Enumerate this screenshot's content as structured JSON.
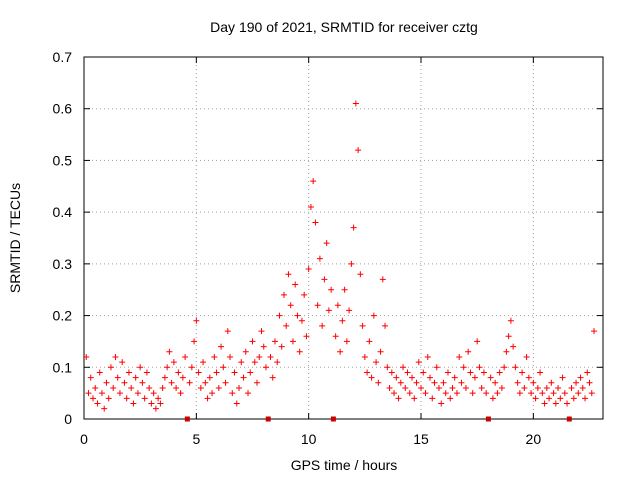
{
  "chart_data": {
    "type": "scatter",
    "title": "Day 190 of 2021, SRMTID for receiver cztg",
    "xlabel": "GPS time / hours",
    "ylabel": "SRMTID / TECUs",
    "xlim": [
      0,
      23.1
    ],
    "ylim": [
      0,
      0.7
    ],
    "xticks": [
      0,
      5,
      10,
      15,
      20
    ],
    "yticks": [
      0,
      0.1,
      0.2,
      0.3,
      0.4,
      0.5,
      0.6,
      0.7
    ],
    "xtick_labels": [
      "0",
      "5",
      "10",
      "15",
      "20"
    ],
    "ytick_labels": [
      "0",
      "0.1",
      "0.2",
      "0.3",
      "0.4",
      "0.5",
      "0.6",
      "0.7"
    ],
    "grid": true,
    "marker": "+",
    "series_color": "#ff0000",
    "gap_markers_x": [
      4.6,
      8.2,
      11.1,
      18.0,
      21.6
    ],
    "series": [
      {
        "name": "SRMTID",
        "points": [
          [
            0.1,
            0.12
          ],
          [
            0.2,
            0.05
          ],
          [
            0.3,
            0.08
          ],
          [
            0.4,
            0.04
          ],
          [
            0.5,
            0.06
          ],
          [
            0.6,
            0.03
          ],
          [
            0.7,
            0.09
          ],
          [
            0.8,
            0.05
          ],
          [
            0.9,
            0.02
          ],
          [
            1.0,
            0.07
          ],
          [
            1.1,
            0.04
          ],
          [
            1.2,
            0.1
          ],
          [
            1.3,
            0.06
          ],
          [
            1.4,
            0.12
          ],
          [
            1.5,
            0.08
          ],
          [
            1.6,
            0.05
          ],
          [
            1.7,
            0.11
          ],
          [
            1.8,
            0.07
          ],
          [
            1.9,
            0.04
          ],
          [
            2.0,
            0.09
          ],
          [
            2.1,
            0.06
          ],
          [
            2.2,
            0.03
          ],
          [
            2.3,
            0.08
          ],
          [
            2.4,
            0.05
          ],
          [
            2.5,
            0.1
          ],
          [
            2.6,
            0.07
          ],
          [
            2.7,
            0.04
          ],
          [
            2.8,
            0.09
          ],
          [
            2.9,
            0.06
          ],
          [
            3.0,
            0.03
          ],
          [
            3.1,
            0.05
          ],
          [
            3.2,
            0.02
          ],
          [
            3.3,
            0.04
          ],
          [
            3.4,
            0.03
          ],
          [
            3.5,
            0.06
          ],
          [
            3.6,
            0.08
          ],
          [
            3.7,
            0.1
          ],
          [
            3.8,
            0.13
          ],
          [
            3.9,
            0.07
          ],
          [
            4.0,
            0.11
          ],
          [
            4.1,
            0.06
          ],
          [
            4.2,
            0.09
          ],
          [
            4.3,
            0.05
          ],
          [
            4.4,
            0.08
          ],
          [
            4.5,
            0.12
          ],
          [
            4.7,
            0.07
          ],
          [
            4.8,
            0.1
          ],
          [
            4.9,
            0.15
          ],
          [
            5.0,
            0.19
          ],
          [
            5.1,
            0.09
          ],
          [
            5.2,
            0.06
          ],
          [
            5.3,
            0.11
          ],
          [
            5.4,
            0.07
          ],
          [
            5.5,
            0.04
          ],
          [
            5.6,
            0.08
          ],
          [
            5.7,
            0.05
          ],
          [
            5.8,
            0.12
          ],
          [
            5.9,
            0.09
          ],
          [
            6.0,
            0.06
          ],
          [
            6.1,
            0.14
          ],
          [
            6.2,
            0.1
          ],
          [
            6.3,
            0.07
          ],
          [
            6.4,
            0.17
          ],
          [
            6.5,
            0.12
          ],
          [
            6.6,
            0.05
          ],
          [
            6.7,
            0.09
          ],
          [
            6.8,
            0.03
          ],
          [
            6.9,
            0.06
          ],
          [
            7.0,
            0.11
          ],
          [
            7.1,
            0.08
          ],
          [
            7.2,
            0.13
          ],
          [
            7.3,
            0.05
          ],
          [
            7.4,
            0.09
          ],
          [
            7.5,
            0.15
          ],
          [
            7.6,
            0.11
          ],
          [
            7.7,
            0.07
          ],
          [
            7.8,
            0.12
          ],
          [
            7.9,
            0.17
          ],
          [
            8.0,
            0.14
          ],
          [
            8.1,
            0.1
          ],
          [
            8.3,
            0.12
          ],
          [
            8.4,
            0.08
          ],
          [
            8.5,
            0.15
          ],
          [
            8.6,
            0.11
          ],
          [
            8.7,
            0.2
          ],
          [
            8.8,
            0.14
          ],
          [
            8.9,
            0.24
          ],
          [
            9.0,
            0.18
          ],
          [
            9.1,
            0.28
          ],
          [
            9.2,
            0.22
          ],
          [
            9.3,
            0.15
          ],
          [
            9.4,
            0.26
          ],
          [
            9.5,
            0.2
          ],
          [
            9.6,
            0.13
          ],
          [
            9.7,
            0.19
          ],
          [
            9.8,
            0.24
          ],
          [
            9.9,
            0.16
          ],
          [
            10.0,
            0.29
          ],
          [
            10.1,
            0.41
          ],
          [
            10.2,
            0.46
          ],
          [
            10.3,
            0.38
          ],
          [
            10.4,
            0.22
          ],
          [
            10.5,
            0.31
          ],
          [
            10.6,
            0.18
          ],
          [
            10.7,
            0.27
          ],
          [
            10.8,
            0.34
          ],
          [
            10.9,
            0.21
          ],
          [
            11.0,
            0.25
          ],
          [
            11.2,
            0.16
          ],
          [
            11.3,
            0.22
          ],
          [
            11.4,
            0.13
          ],
          [
            11.5,
            0.19
          ],
          [
            11.6,
            0.25
          ],
          [
            11.7,
            0.15
          ],
          [
            11.8,
            0.21
          ],
          [
            11.9,
            0.3
          ],
          [
            12.0,
            0.37
          ],
          [
            12.1,
            0.61
          ],
          [
            12.2,
            0.52
          ],
          [
            12.3,
            0.28
          ],
          [
            12.4,
            0.18
          ],
          [
            12.5,
            0.12
          ],
          [
            12.6,
            0.09
          ],
          [
            12.7,
            0.15
          ],
          [
            12.8,
            0.08
          ],
          [
            12.9,
            0.2
          ],
          [
            13.0,
            0.11
          ],
          [
            13.1,
            0.07
          ],
          [
            13.2,
            0.13
          ],
          [
            13.3,
            0.27
          ],
          [
            13.4,
            0.18
          ],
          [
            13.5,
            0.1
          ],
          [
            13.6,
            0.06
          ],
          [
            13.7,
            0.09
          ],
          [
            13.8,
            0.05
          ],
          [
            13.9,
            0.08
          ],
          [
            14.0,
            0.04
          ],
          [
            14.1,
            0.07
          ],
          [
            14.2,
            0.1
          ],
          [
            14.3,
            0.06
          ],
          [
            14.4,
            0.09
          ],
          [
            14.5,
            0.05
          ],
          [
            14.6,
            0.08
          ],
          [
            14.7,
            0.04
          ],
          [
            14.8,
            0.07
          ],
          [
            14.9,
            0.11
          ],
          [
            15.0,
            0.06
          ],
          [
            15.1,
            0.09
          ],
          [
            15.2,
            0.05
          ],
          [
            15.3,
            0.12
          ],
          [
            15.4,
            0.08
          ],
          [
            15.5,
            0.04
          ],
          [
            15.6,
            0.07
          ],
          [
            15.7,
            0.1
          ],
          [
            15.8,
            0.06
          ],
          [
            15.9,
            0.03
          ],
          [
            16.0,
            0.07
          ],
          [
            16.1,
            0.05
          ],
          [
            16.2,
            0.09
          ],
          [
            16.3,
            0.04
          ],
          [
            16.4,
            0.06
          ],
          [
            16.5,
            0.08
          ],
          [
            16.6,
            0.05
          ],
          [
            16.7,
            0.12
          ],
          [
            16.8,
            0.07
          ],
          [
            16.9,
            0.1
          ],
          [
            17.0,
            0.06
          ],
          [
            17.1,
            0.13
          ],
          [
            17.2,
            0.09
          ],
          [
            17.3,
            0.05
          ],
          [
            17.4,
            0.08
          ],
          [
            17.5,
            0.15
          ],
          [
            17.6,
            0.1
          ],
          [
            17.7,
            0.06
          ],
          [
            17.8,
            0.09
          ],
          [
            17.9,
            0.05
          ],
          [
            18.1,
            0.08
          ],
          [
            18.2,
            0.04
          ],
          [
            18.3,
            0.07
          ],
          [
            18.4,
            0.05
          ],
          [
            18.5,
            0.09
          ],
          [
            18.6,
            0.06
          ],
          [
            18.7,
            0.1
          ],
          [
            18.8,
            0.13
          ],
          [
            18.9,
            0.16
          ],
          [
            19.0,
            0.19
          ],
          [
            19.1,
            0.14
          ],
          [
            19.2,
            0.1
          ],
          [
            19.3,
            0.07
          ],
          [
            19.4,
            0.05
          ],
          [
            19.5,
            0.09
          ],
          [
            19.6,
            0.06
          ],
          [
            19.7,
            0.12
          ],
          [
            19.8,
            0.08
          ],
          [
            19.9,
            0.05
          ],
          [
            20.0,
            0.07
          ],
          [
            20.1,
            0.04
          ],
          [
            20.2,
            0.06
          ],
          [
            20.3,
            0.09
          ],
          [
            20.4,
            0.05
          ],
          [
            20.5,
            0.03
          ],
          [
            20.6,
            0.06
          ],
          [
            20.7,
            0.04
          ],
          [
            20.8,
            0.07
          ],
          [
            20.9,
            0.05
          ],
          [
            21.0,
            0.03
          ],
          [
            21.1,
            0.06
          ],
          [
            21.2,
            0.04
          ],
          [
            21.3,
            0.08
          ],
          [
            21.4,
            0.05
          ],
          [
            21.5,
            0.03
          ],
          [
            21.7,
            0.06
          ],
          [
            21.8,
            0.04
          ],
          [
            21.9,
            0.07
          ],
          [
            22.0,
            0.05
          ],
          [
            22.1,
            0.08
          ],
          [
            22.2,
            0.06
          ],
          [
            22.3,
            0.04
          ],
          [
            22.4,
            0.09
          ],
          [
            22.5,
            0.07
          ],
          [
            22.6,
            0.05
          ],
          [
            22.7,
            0.17
          ]
        ]
      }
    ]
  }
}
